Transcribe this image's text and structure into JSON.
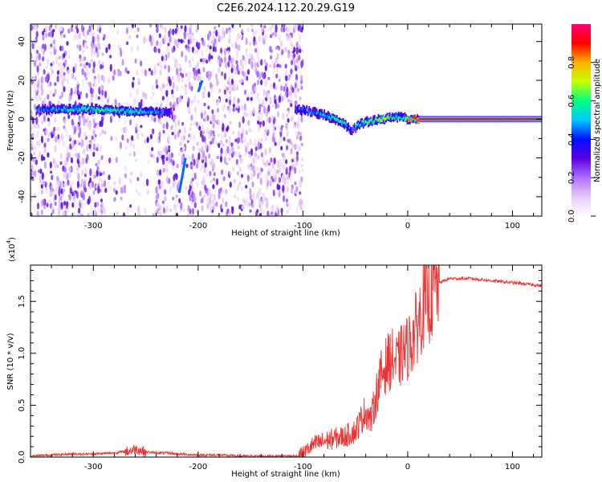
{
  "title": "C2E6.2024.112.20.29.G19",
  "chart_data": [
    {
      "type": "heatmap",
      "xlabel": "Height of straight line (km)",
      "ylabel": "Frequency (Hz)",
      "xlim": [
        -360,
        128
      ],
      "ylim": [
        -50,
        49
      ],
      "xticks": [
        -300,
        -200,
        -100,
        0,
        100
      ],
      "yticks": [
        -40,
        -20,
        0,
        20,
        40
      ],
      "colorbar": {
        "label": "Normalized spectral amplitude",
        "range": [
          0,
          1
        ],
        "ticks": [
          0.0,
          0.2,
          0.4,
          0.6,
          0.8
        ],
        "colormap": [
          "#ffffff",
          "#e6c8f5",
          "#b070ff",
          "#5a00e0",
          "#0010ff",
          "#00c8ff",
          "#00ff80",
          "#c8ff00",
          "#ffb000",
          "#ff0000",
          "#ff0078"
        ]
      },
      "noise_band_x": [
        -360,
        -100
      ],
      "signal_ridge": {
        "x": [
          -355,
          -330,
          -300,
          -270,
          -240,
          -225,
          -108,
          -95,
          -80,
          -70,
          -60,
          -55,
          -50,
          -45,
          -35,
          -25,
          -15,
          -5,
          0,
          10,
          50,
          100,
          128
        ],
        "frequency_hz": [
          5,
          5,
          5,
          4,
          4,
          3,
          5,
          4,
          2,
          0,
          -3,
          -6,
          -4,
          -2,
          -1,
          0,
          1,
          1,
          0,
          0,
          0,
          0,
          0
        ],
        "amplitude": [
          0.45,
          0.5,
          0.6,
          0.55,
          0.5,
          0.3,
          0.4,
          0.45,
          0.5,
          0.6,
          0.55,
          0.35,
          0.5,
          0.55,
          0.6,
          0.7,
          0.6,
          0.5,
          0.8,
          0.95,
          0.95,
          0.95,
          0.95
        ]
      },
      "streaks": [
        {
          "x": [
            -212,
            -218
          ],
          "frequency_hz": [
            -20,
            -38
          ]
        },
        {
          "x": [
            -200,
            -196
          ],
          "frequency_hz": [
            14,
            20
          ]
        }
      ]
    },
    {
      "type": "line",
      "xlabel": "Height of straight line (km)",
      "ylabel": "SNR (10 * v/v)",
      "y_multiplier_label": "(x10",
      "y_multiplier_exp": "4",
      "xlim": [
        -360,
        128
      ],
      "ylim": [
        0,
        1.85
      ],
      "xticks": [
        -300,
        -200,
        -100,
        0,
        100
      ],
      "yticks": [
        0.0,
        0.5,
        1.0,
        1.5
      ],
      "ytick_labels": [
        "0.0",
        "0.5",
        "1.0",
        "1.5"
      ],
      "color": "#ee3333",
      "series": [
        {
          "x": [
            -360,
            -340,
            -320,
            -300,
            -280,
            -265,
            -260,
            -250,
            -240,
            -230,
            -220,
            -200,
            -180,
            -160,
            -140,
            -120,
            -105,
            -98,
            -90,
            -80,
            -70,
            -60,
            -50,
            -45,
            -40,
            -35,
            -30,
            -25,
            -20,
            -15,
            -10,
            -5,
            0,
            5,
            10,
            15,
            20,
            25,
            30,
            40,
            50,
            60,
            70,
            80,
            90,
            100,
            110,
            120,
            128
          ],
          "y": [
            0.01,
            0.02,
            0.03,
            0.03,
            0.04,
            0.06,
            0.08,
            0.05,
            0.04,
            0.04,
            0.03,
            0.02,
            0.02,
            0.01,
            0.01,
            0.01,
            0.01,
            0.05,
            0.12,
            0.15,
            0.18,
            0.2,
            0.25,
            0.35,
            0.45,
            0.35,
            0.6,
            0.8,
            0.9,
            0.95,
            0.9,
            1.0,
            1.05,
            1.15,
            1.3,
            1.45,
            1.5,
            1.6,
            1.68,
            1.72,
            1.72,
            1.72,
            1.71,
            1.7,
            1.69,
            1.68,
            1.67,
            1.66,
            1.65
          ]
        }
      ]
    }
  ]
}
